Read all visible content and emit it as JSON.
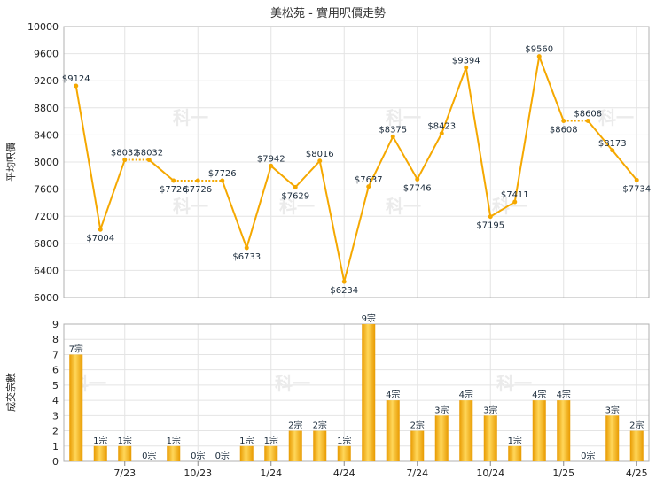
{
  "chart_data": {
    "title": "美松苑 - 實用呎價走勢",
    "x_ticks": [
      "7/23",
      "10/23",
      "1/24",
      "4/24",
      "7/24",
      "10/24",
      "1/25",
      "4/25"
    ],
    "price": {
      "type": "line",
      "ylabel": "平均呎價",
      "ylim": [
        6000,
        10000
      ],
      "yticks": [
        6000,
        6400,
        6800,
        7200,
        7600,
        8000,
        8400,
        8800,
        9200,
        9600,
        10000
      ],
      "values": [
        9124,
        7004,
        8032,
        8032,
        7726,
        7726,
        7726,
        6733,
        7942,
        7629,
        8016,
        6234,
        7637,
        8375,
        7746,
        8423,
        9394,
        7195,
        7411,
        9560,
        8608,
        8608,
        8173,
        7734
      ],
      "labels": [
        "$9124",
        "$7004",
        "$8032",
        "$8032",
        "$7726",
        "$7726",
        "$7726",
        "$6733",
        "$7942",
        "$7629",
        "$8016",
        "$6234",
        "$7637",
        "$8375",
        "$7746",
        "$8423",
        "$9394",
        "$7195",
        "$7411",
        "$9560",
        "$8608",
        "$8608",
        "$8173",
        "$7734"
      ],
      "color": "#f5a800"
    },
    "volume": {
      "type": "bar",
      "ylabel": "成交宗數",
      "ylim": [
        0,
        9
      ],
      "yticks": [
        0,
        1,
        2,
        3,
        4,
        5,
        6,
        7,
        8,
        9
      ],
      "values": [
        7,
        1,
        1,
        0,
        1,
        0,
        0,
        1,
        1,
        2,
        2,
        1,
        9,
        4,
        2,
        3,
        4,
        3,
        1,
        4,
        4,
        0,
        3,
        2
      ],
      "labels": [
        "7宗",
        "1宗",
        "1宗",
        "0宗",
        "1宗",
        "0宗",
        "0宗",
        "1宗",
        "1宗",
        "2宗",
        "2宗",
        "1宗",
        "9宗",
        "4宗",
        "2宗",
        "3宗",
        "4宗",
        "3宗",
        "1宗",
        "4宗",
        "4宗",
        "0宗",
        "3宗",
        "2宗"
      ],
      "color": "#f5a800"
    },
    "watermark": "科一"
  }
}
